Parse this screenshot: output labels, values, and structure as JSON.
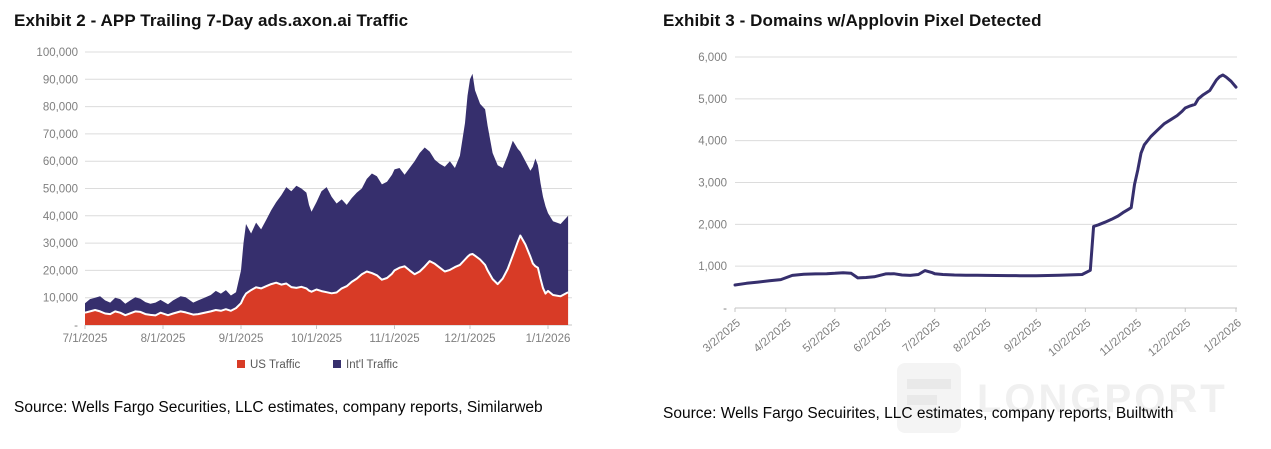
{
  "exhibit2": {
    "title": "Exhibit 2 - APP Trailing 7-Day ads.axon.ai Traffic",
    "source": "Source: Wells Fargo Securities, LLC estimates, company reports, Similarweb"
  },
  "exhibit3": {
    "title": "Exhibit 3 - Domains w/Applovin Pixel Detected",
    "source": "Source: Wells Fargo Secuirites, LLC estimates, company reports, Builtwith"
  },
  "watermark": {
    "text": "LONGPORT"
  },
  "colors": {
    "us_red": "#d83b26",
    "intl_navy": "#362f6d",
    "gridline": "#dcdcdc",
    "axis_line": "#c4c4c4",
    "tick_text": "#7f7f7f",
    "legend_text": "#595959",
    "separator_white": "#ffffff"
  },
  "chart_data": [
    {
      "type": "area",
      "stacked": true,
      "title": "Exhibit 2 - APP Trailing 7-Day ads.axon.ai Traffic",
      "xlabel": "",
      "ylabel": "",
      "ylim": [
        0,
        100000
      ],
      "grid": true,
      "legend_position": "bottom",
      "y_tick_values": [
        100000,
        90000,
        80000,
        70000,
        60000,
        50000,
        40000,
        30000,
        20000,
        10000,
        0
      ],
      "y_tick_labels": [
        "100,000",
        "90,000",
        "80,000",
        "70,000",
        "60,000",
        "50,000",
        "40,000",
        "30,000",
        "20,000",
        "10,000",
        "-"
      ],
      "x_tick_labels": [
        "7/1/2025",
        "8/1/2025",
        "9/1/2025",
        "10/1/2025",
        "11/1/2025",
        "12/1/2025",
        "1/1/2026"
      ],
      "x_tick_days": [
        0,
        31,
        62,
        92,
        123,
        153,
        184
      ],
      "series": [
        {
          "name": "US Traffic",
          "color": "#d83b26"
        },
        {
          "name": "Int'l Traffic",
          "color": "#362f6d"
        }
      ],
      "columns": [
        "day_from_7_1_2025",
        "us_traffic",
        "intl_traffic"
      ],
      "rows": [
        [
          0,
          4500,
          3500
        ],
        [
          2,
          5000,
          4500
        ],
        [
          4,
          5500,
          4500
        ],
        [
          6,
          5000,
          5500
        ],
        [
          8,
          4200,
          4800
        ],
        [
          10,
          4000,
          4200
        ],
        [
          12,
          5000,
          5000
        ],
        [
          14,
          4500,
          5000
        ],
        [
          16,
          3600,
          4200
        ],
        [
          18,
          4300,
          4700
        ],
        [
          20,
          5000,
          5200
        ],
        [
          22,
          4800,
          4800
        ],
        [
          24,
          4000,
          4400
        ],
        [
          26,
          3700,
          4100
        ],
        [
          28,
          3500,
          4700
        ],
        [
          30,
          4500,
          4700
        ],
        [
          33,
          3600,
          4000
        ],
        [
          35,
          4200,
          4800
        ],
        [
          38,
          5000,
          5500
        ],
        [
          40,
          4600,
          5600
        ],
        [
          43,
          3800,
          4400
        ],
        [
          45,
          4000,
          5000
        ],
        [
          47,
          4400,
          5400
        ],
        [
          50,
          5000,
          6000
        ],
        [
          52,
          5500,
          7000
        ],
        [
          54,
          5200,
          6300
        ],
        [
          56,
          5800,
          7000
        ],
        [
          58,
          5200,
          5600
        ],
        [
          60,
          6200,
          5800
        ],
        [
          62,
          8000,
          12000
        ],
        [
          63,
          10000,
          20000
        ],
        [
          64,
          11500,
          25500
        ],
        [
          66,
          12800,
          20700
        ],
        [
          68,
          13800,
          23700
        ],
        [
          70,
          13400,
          21600
        ],
        [
          72,
          14200,
          24300
        ],
        [
          74,
          15000,
          27000
        ],
        [
          76,
          15500,
          29500
        ],
        [
          78,
          14800,
          32700
        ],
        [
          80,
          15200,
          35300
        ],
        [
          82,
          13900,
          35100
        ],
        [
          84,
          13600,
          37400
        ],
        [
          86,
          14000,
          36000
        ],
        [
          88,
          13400,
          35100
        ],
        [
          89,
          12600,
          31400
        ],
        [
          90,
          12200,
          29300
        ],
        [
          92,
          13000,
          32000
        ],
        [
          94,
          12400,
          36600
        ],
        [
          96,
          12000,
          38500
        ],
        [
          98,
          11600,
          35400
        ],
        [
          100,
          11900,
          32600
        ],
        [
          102,
          13400,
          32600
        ],
        [
          104,
          14200,
          29800
        ],
        [
          106,
          15800,
          30700
        ],
        [
          108,
          17000,
          31500
        ],
        [
          110,
          18600,
          31400
        ],
        [
          112,
          19600,
          33900
        ],
        [
          114,
          19000,
          36500
        ],
        [
          116,
          18200,
          36300
        ],
        [
          118,
          16600,
          34900
        ],
        [
          120,
          17200,
          35300
        ],
        [
          122,
          18800,
          36200
        ],
        [
          123,
          20000,
          37000
        ],
        [
          125,
          21000,
          36500
        ],
        [
          127,
          21500,
          33500
        ],
        [
          129,
          20000,
          37500
        ],
        [
          131,
          18600,
          41400
        ],
        [
          133,
          19600,
          43400
        ],
        [
          135,
          21400,
          43600
        ],
        [
          137,
          23400,
          40100
        ],
        [
          139,
          22400,
          38100
        ],
        [
          141,
          21000,
          38000
        ],
        [
          143,
          19600,
          38400
        ],
        [
          145,
          20200,
          39800
        ],
        [
          147,
          21200,
          36300
        ],
        [
          149,
          22000,
          40000
        ],
        [
          151,
          24000,
          50000
        ],
        [
          152,
          25000,
          59000
        ],
        [
          153,
          25800,
          64200
        ],
        [
          154,
          26000,
          66000
        ],
        [
          155,
          25400,
          60600
        ],
        [
          157,
          24000,
          57000
        ],
        [
          159,
          22000,
          57000
        ],
        [
          160,
          20000,
          53000
        ],
        [
          162,
          16800,
          46200
        ],
        [
          164,
          15000,
          43500
        ],
        [
          166,
          17000,
          40500
        ],
        [
          168,
          20500,
          41500
        ],
        [
          170,
          25500,
          42000
        ],
        [
          171,
          28000,
          38000
        ],
        [
          172,
          30500,
          34000
        ],
        [
          173,
          32800,
          30700
        ],
        [
          175,
          29500,
          30500
        ],
        [
          177,
          25000,
          31500
        ],
        [
          178,
          22500,
          35500
        ],
        [
          179,
          21500,
          39500
        ],
        [
          180,
          21000,
          37500
        ],
        [
          181,
          17000,
          35000
        ],
        [
          182,
          13500,
          33500
        ],
        [
          183,
          11500,
          32000
        ],
        [
          184,
          12500,
          28500
        ],
        [
          186,
          11000,
          27000
        ],
        [
          189,
          10500,
          26500
        ],
        [
          192,
          12000,
          28000
        ]
      ]
    },
    {
      "type": "line",
      "title": "Exhibit 3 - Domains w/Applovin Pixel Detected",
      "xlabel": "",
      "ylabel": "",
      "ylim": [
        0,
        6000
      ],
      "grid": true,
      "legend_position": "none",
      "line_color": "#362f6d",
      "y_tick_values": [
        6000,
        5000,
        4000,
        3000,
        2000,
        1000,
        0
      ],
      "y_tick_labels": [
        "6,000",
        "5,000",
        "4,000",
        "3,000",
        "2,000",
        "1,000",
        "-"
      ],
      "x_tick_labels": [
        "3/2/2025",
        "4/2/2025",
        "5/2/2025",
        "6/2/2025",
        "7/2/2025",
        "8/2/2025",
        "9/2/2025",
        "10/2/2025",
        "11/2/2025",
        "12/2/2025",
        "1/2/2026"
      ],
      "x_tick_days": [
        0,
        31,
        61,
        92,
        122,
        153,
        184,
        214,
        245,
        275,
        306
      ],
      "columns": [
        "day_from_3_2_2025",
        "domains"
      ],
      "rows": [
        [
          0,
          550
        ],
        [
          7,
          590
        ],
        [
          14,
          620
        ],
        [
          21,
          650
        ],
        [
          28,
          680
        ],
        [
          35,
          780
        ],
        [
          42,
          805
        ],
        [
          49,
          815
        ],
        [
          56,
          820
        ],
        [
          61,
          830
        ],
        [
          66,
          845
        ],
        [
          71,
          830
        ],
        [
          75,
          720
        ],
        [
          80,
          730
        ],
        [
          85,
          745
        ],
        [
          92,
          815
        ],
        [
          97,
          820
        ],
        [
          102,
          790
        ],
        [
          107,
          780
        ],
        [
          112,
          800
        ],
        [
          116,
          895
        ],
        [
          120,
          850
        ],
        [
          122,
          820
        ],
        [
          127,
          800
        ],
        [
          134,
          790
        ],
        [
          141,
          785
        ],
        [
          148,
          782
        ],
        [
          153,
          780
        ],
        [
          160,
          778
        ],
        [
          167,
          775
        ],
        [
          174,
          772
        ],
        [
          181,
          772
        ],
        [
          184,
          773
        ],
        [
          191,
          778
        ],
        [
          198,
          785
        ],
        [
          205,
          792
        ],
        [
          212,
          800
        ],
        [
          217,
          900
        ],
        [
          219,
          1950
        ],
        [
          222,
          1990
        ],
        [
          226,
          2050
        ],
        [
          230,
          2120
        ],
        [
          234,
          2200
        ],
        [
          237,
          2280
        ],
        [
          240,
          2350
        ],
        [
          242,
          2400
        ],
        [
          244,
          2950
        ],
        [
          246,
          3300
        ],
        [
          248,
          3700
        ],
        [
          250,
          3900
        ],
        [
          254,
          4100
        ],
        [
          258,
          4250
        ],
        [
          262,
          4400
        ],
        [
          266,
          4500
        ],
        [
          270,
          4600
        ],
        [
          273,
          4700
        ],
        [
          275,
          4780
        ],
        [
          278,
          4830
        ],
        [
          281,
          4870
        ],
        [
          283,
          5000
        ],
        [
          286,
          5100
        ],
        [
          290,
          5200
        ],
        [
          294,
          5450
        ],
        [
          296,
          5530
        ],
        [
          298,
          5570
        ],
        [
          300,
          5520
        ],
        [
          303,
          5420
        ],
        [
          306,
          5280
        ]
      ]
    }
  ]
}
